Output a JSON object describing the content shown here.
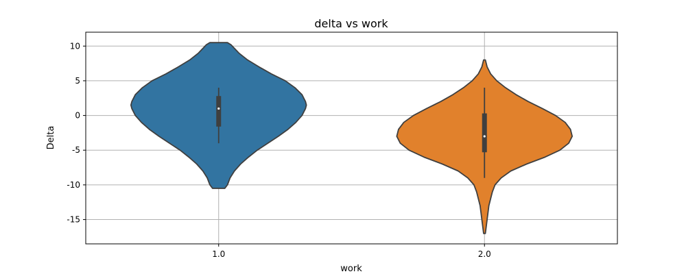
{
  "chart_data": {
    "type": "violin",
    "title": "delta vs work",
    "xlabel": "work",
    "ylabel": "Delta",
    "categories": [
      "1.0",
      "2.0"
    ],
    "ylim": [
      -18.5,
      12
    ],
    "yticks": [
      10,
      5,
      0,
      -5,
      -10,
      -15
    ],
    "grid": true,
    "violins": [
      {
        "category": "1.0",
        "color": "#3274a1",
        "outline": "#3f3f3f",
        "median": 1.0,
        "q1": -1.6,
        "q3": 2.8,
        "whisker_low": -4.0,
        "whisker_high": 4.0,
        "profile": [
          [
            10.5,
            0.1
          ],
          [
            10.2,
            0.14
          ],
          [
            9.0,
            0.23
          ],
          [
            8.0,
            0.33
          ],
          [
            7.0,
            0.46
          ],
          [
            6.0,
            0.6
          ],
          [
            5.0,
            0.76
          ],
          [
            4.0,
            0.87
          ],
          [
            3.0,
            0.95
          ],
          [
            2.0,
            0.99
          ],
          [
            1.5,
            1.0
          ],
          [
            1.0,
            0.99
          ],
          [
            0.0,
            0.95
          ],
          [
            -1.0,
            0.88
          ],
          [
            -2.0,
            0.79
          ],
          [
            -3.0,
            0.68
          ],
          [
            -4.0,
            0.56
          ],
          [
            -5.0,
            0.44
          ],
          [
            -6.0,
            0.34
          ],
          [
            -7.0,
            0.25
          ],
          [
            -8.0,
            0.18
          ],
          [
            -9.0,
            0.13
          ],
          [
            -10.0,
            0.1
          ],
          [
            -10.5,
            0.07
          ]
        ]
      },
      {
        "category": "2.0",
        "color": "#e1812c",
        "outline": "#3f3f3f",
        "median": -3.0,
        "q1": -5.3,
        "q3": 0.3,
        "whisker_low": -9.0,
        "whisker_high": 4.0,
        "profile": [
          [
            8.0,
            0.01
          ],
          [
            7.0,
            0.03
          ],
          [
            6.0,
            0.07
          ],
          [
            5.0,
            0.14
          ],
          [
            4.0,
            0.24
          ],
          [
            3.0,
            0.36
          ],
          [
            2.0,
            0.5
          ],
          [
            1.0,
            0.66
          ],
          [
            0.0,
            0.81
          ],
          [
            -1.0,
            0.92
          ],
          [
            -2.0,
            0.98
          ],
          [
            -3.0,
            1.0
          ],
          [
            -4.0,
            0.96
          ],
          [
            -5.0,
            0.86
          ],
          [
            -6.0,
            0.69
          ],
          [
            -7.0,
            0.48
          ],
          [
            -8.0,
            0.3
          ],
          [
            -9.0,
            0.19
          ],
          [
            -10.0,
            0.12
          ],
          [
            -11.0,
            0.09
          ],
          [
            -12.0,
            0.07
          ],
          [
            -13.0,
            0.05
          ],
          [
            -14.0,
            0.04
          ],
          [
            -15.0,
            0.03
          ],
          [
            -16.0,
            0.02
          ],
          [
            -17.0,
            0.01
          ]
        ]
      }
    ]
  }
}
